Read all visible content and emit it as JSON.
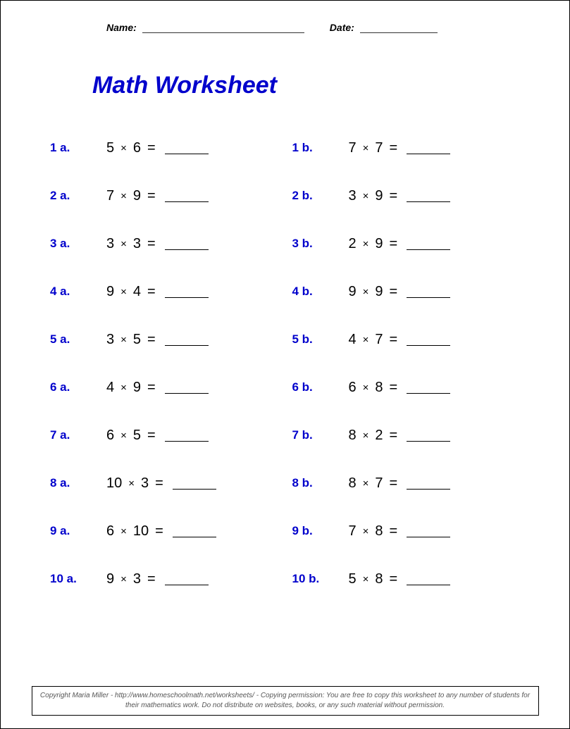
{
  "header": {
    "name_label": "Name:",
    "date_label": "Date:"
  },
  "title": "Math Worksheet",
  "colors": {
    "title_color": "#0000cc",
    "label_color": "#0000cc",
    "text_color": "#000000",
    "border_color": "#000000",
    "background": "#ffffff"
  },
  "typography": {
    "title_fontsize": 34,
    "label_fontsize": 17,
    "expr_fontsize": 20,
    "header_fontsize": 14,
    "copyright_fontsize": 10
  },
  "operator": "×",
  "equals": "=",
  "problems": [
    {
      "label_a": "1 a.",
      "a": [
        5,
        6
      ],
      "label_b": "1 b.",
      "b": [
        7,
        7
      ]
    },
    {
      "label_a": "2 a.",
      "a": [
        7,
        9
      ],
      "label_b": "2 b.",
      "b": [
        3,
        9
      ]
    },
    {
      "label_a": "3 a.",
      "a": [
        3,
        3
      ],
      "label_b": "3 b.",
      "b": [
        2,
        9
      ]
    },
    {
      "label_a": "4 a.",
      "a": [
        9,
        4
      ],
      "label_b": "4 b.",
      "b": [
        9,
        9
      ]
    },
    {
      "label_a": "5 a.",
      "a": [
        3,
        5
      ],
      "label_b": "5 b.",
      "b": [
        4,
        7
      ]
    },
    {
      "label_a": "6 a.",
      "a": [
        4,
        9
      ],
      "label_b": "6 b.",
      "b": [
        6,
        8
      ]
    },
    {
      "label_a": "7 a.",
      "a": [
        6,
        5
      ],
      "label_b": "7 b.",
      "b": [
        8,
        2
      ]
    },
    {
      "label_a": "8 a.",
      "a": [
        10,
        3
      ],
      "label_b": "8 b.",
      "b": [
        8,
        7
      ]
    },
    {
      "label_a": "9 a.",
      "a": [
        6,
        10
      ],
      "label_b": "9 b.",
      "b": [
        7,
        8
      ]
    },
    {
      "label_a": "10 a.",
      "a": [
        9,
        3
      ],
      "label_b": "10 b.",
      "b": [
        5,
        8
      ]
    }
  ],
  "copyright": "Copyright Maria Miller - http://www.homeschoolmath.net/worksheets/ - Copying permission: You are free to copy this worksheet to any number of students for their mathematics work. Do not distribute on websites, books, or any such material without permission."
}
